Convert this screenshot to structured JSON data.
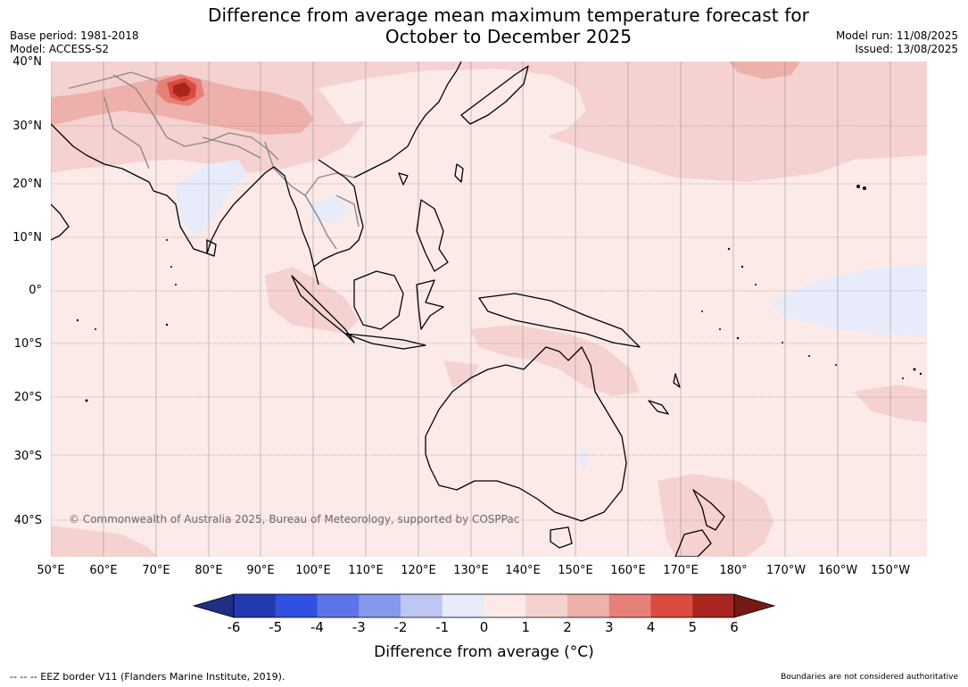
{
  "header": {
    "title_line1": "Difference from average mean maximum temperature forecast for",
    "title_line2": "October to December 2025",
    "base_period": "Base period: 1981-2018",
    "model": "Model: ACCESS-S2",
    "model_run": "Model run: 11/08/2025",
    "issued": "Issued: 13/08/2025"
  },
  "map": {
    "lat_labels": [
      "40°N",
      "30°N",
      "20°N",
      "10°N",
      "0°",
      "10°S",
      "20°S",
      "30°S",
      "40°S"
    ],
    "lon_labels": [
      "50°E",
      "60°E",
      "70°E",
      "80°E",
      "90°E",
      "100°E",
      "110°E",
      "120°E",
      "130°E",
      "140°E",
      "150°E",
      "160°E",
      "170°E",
      "180°",
      "170°W",
      "160°W",
      "150°W"
    ],
    "copyright": "© Commonwealth of Australia 2025, Bureau of Meteorology, supported by COSPPac",
    "colors": {
      "ocean_base": "#fbeae8",
      "anom_1_2": "#f5d2cf",
      "anom_2_3": "#eeb0ab",
      "anom_3_4": "#e8807a",
      "anom_4_5": "#d94a3f",
      "anom_5_6": "#a8261f",
      "anom_neg1_0": "#e7ebfa",
      "coast": "#000000",
      "borders": "#8a8a8a",
      "grid": "#7a7a7a"
    }
  },
  "colorbar": {
    "ticks": [
      "-6",
      "-5",
      "-4",
      "-3",
      "-2",
      "-1",
      "0",
      "1",
      "2",
      "3",
      "4",
      "5",
      "6"
    ],
    "colors": [
      "#1f2f85",
      "#243ab0",
      "#3150e0",
      "#5d74e6",
      "#8698ec",
      "#bec7f4",
      "#e7ebfa",
      "#fbeae8",
      "#f5d2cf",
      "#eeb0ab",
      "#e8807a",
      "#d94a3f",
      "#a8261f",
      "#761a14"
    ],
    "label": "Difference from average (°C)"
  },
  "footer": {
    "eez": "-- -- -- EEZ border V11 (Flanders Marine Institute, 2019).",
    "disclaimer": "Boundaries are not considered authoritative"
  }
}
